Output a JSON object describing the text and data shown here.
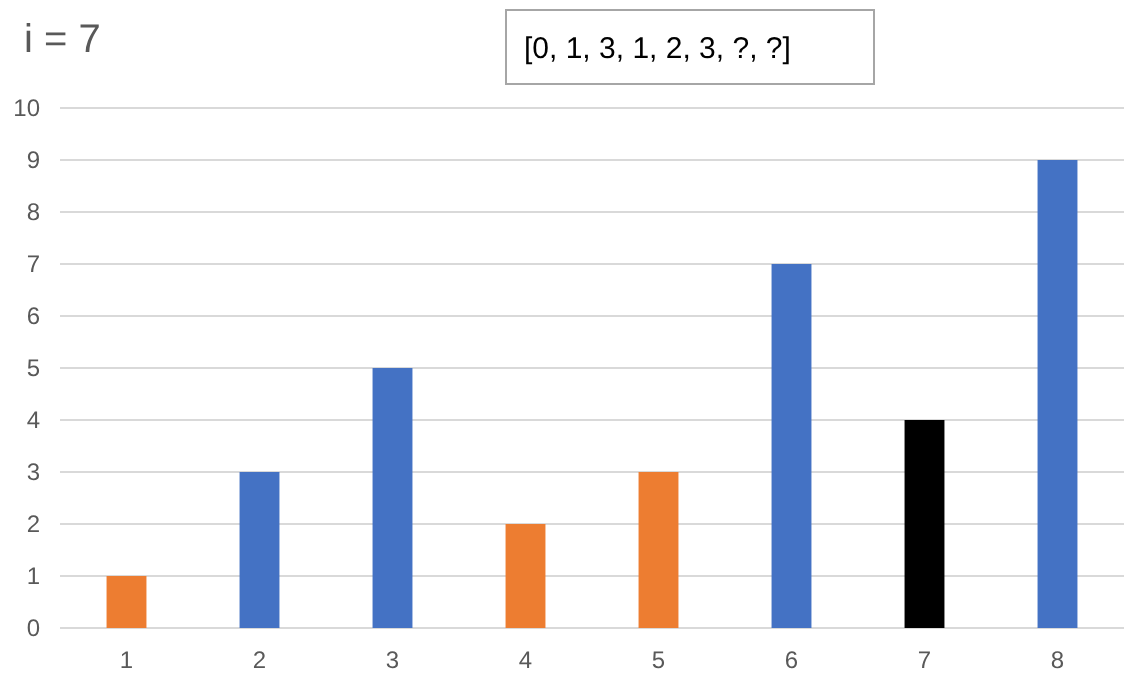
{
  "chart_data": {
    "type": "bar",
    "title": "i = 7",
    "annotations": [
      "[0, 1, 3, 1, 2, 3, ?, ?]"
    ],
    "categories": [
      "1",
      "2",
      "3",
      "4",
      "5",
      "6",
      "7",
      "8"
    ],
    "values": [
      1,
      3,
      5,
      2,
      3,
      7,
      4,
      9
    ],
    "colors": [
      "#ed7d31",
      "#4472c4",
      "#4472c4",
      "#ed7d31",
      "#ed7d31",
      "#4472c4",
      "#000000",
      "#4472c4"
    ],
    "ylim": [
      0,
      10
    ],
    "yticks": [
      0,
      1,
      2,
      3,
      4,
      5,
      6,
      7,
      8,
      9,
      10
    ],
    "grid": "y"
  }
}
